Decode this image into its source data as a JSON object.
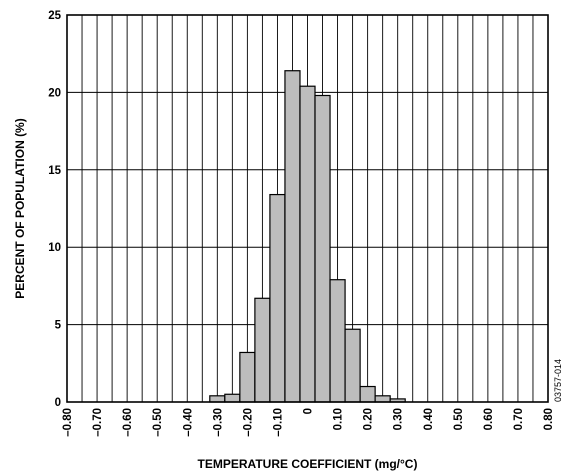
{
  "chart_data": {
    "type": "bar",
    "xlabel": "TEMPERATURE COEFFICIENT (mg/°C)",
    "ylabel": "PERCENT OF POPULATION (%)",
    "xlim": [
      -0.8,
      0.8
    ],
    "ylim": [
      0,
      25
    ],
    "grid": true,
    "x_tick_values": [
      -0.8,
      -0.7,
      -0.6,
      -0.5,
      -0.4,
      -0.3,
      -0.2,
      -0.1,
      0,
      0.1,
      0.2,
      0.3,
      0.4,
      0.5,
      0.6,
      0.7,
      0.8
    ],
    "x_tick_labels": [
      "–0.80",
      "–0.70",
      "–0.60",
      "–0.50",
      "–0.40",
      "–0.30",
      "–0.20",
      "–0.10",
      "0",
      "0.10",
      "0.20",
      "0.30",
      "0.40",
      "0.50",
      "0.60",
      "0.70",
      "0.80"
    ],
    "y_tick_values": [
      0,
      5,
      10,
      15,
      20,
      25
    ],
    "y_tick_labels": [
      "0",
      "5",
      "10",
      "15",
      "20",
      "25"
    ],
    "bin_width": 0.05,
    "bins": [
      {
        "start": -0.325,
        "value": 0.4
      },
      {
        "start": -0.275,
        "value": 0.5
      },
      {
        "start": -0.225,
        "value": 3.2
      },
      {
        "start": -0.175,
        "value": 6.7
      },
      {
        "start": -0.125,
        "value": 13.4
      },
      {
        "start": -0.075,
        "value": 21.4
      },
      {
        "start": -0.025,
        "value": 20.4
      },
      {
        "start": 0.025,
        "value": 19.8
      },
      {
        "start": 0.075,
        "value": 7.9
      },
      {
        "start": 0.125,
        "value": 4.7
      },
      {
        "start": 0.175,
        "value": 1.0
      },
      {
        "start": 0.225,
        "value": 0.4
      },
      {
        "start": 0.275,
        "value": 0.2
      }
    ],
    "colors": {
      "bar_fill": "#bdbdbd",
      "bar_stroke": "#000000",
      "grid": "#000000"
    },
    "annotation": "03757-014"
  }
}
